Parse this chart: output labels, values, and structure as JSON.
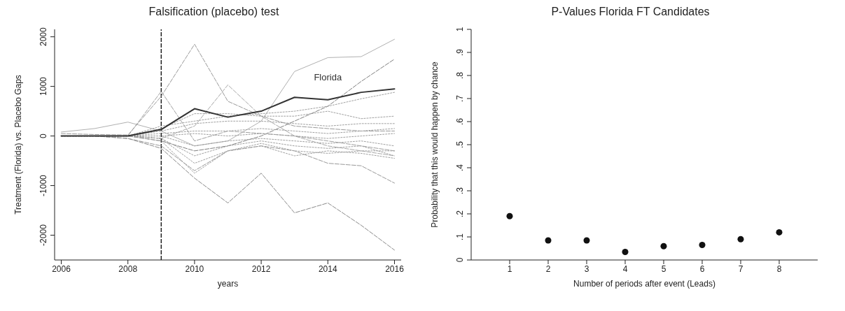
{
  "chart_data": [
    {
      "type": "line",
      "title": "Falsification (placebo) test",
      "xlabel": "years",
      "ylabel": "Treatment (Florida) vs. Placebo Gaps",
      "x": [
        2006,
        2007,
        2008,
        2009,
        2010,
        2011,
        2012,
        2013,
        2014,
        2015,
        2016
      ],
      "xlim": [
        2005.8,
        2016.2
      ],
      "xticks": [
        2006,
        2008,
        2010,
        2012,
        2014,
        2016
      ],
      "ylim": [
        -2500,
        2150
      ],
      "yticks": [
        -2000,
        -1000,
        0,
        1000,
        2000
      ],
      "grid": false,
      "legend": false,
      "marker": "none",
      "ref_lines": [
        {
          "axis": "x",
          "value": 2009,
          "color": "#222222",
          "line_style": "dashed"
        }
      ],
      "series": [
        {
          "color": "#9a9a9a",
          "line_style": "dashed",
          "values": [
            50,
            30,
            20,
            800,
            1850,
            700,
            400,
            200,
            150,
            100,
            100
          ]
        },
        {
          "color": "#b0b0b0",
          "line_style": "solid",
          "values": [
            80,
            150,
            280,
            100,
            -200,
            -100,
            300,
            1300,
            1580,
            1600,
            1950
          ]
        },
        {
          "color": "#808080",
          "line_style": "dashed",
          "values": [
            0,
            0,
            0,
            -100,
            -300,
            -200,
            0,
            300,
            600,
            1100,
            1550
          ]
        },
        {
          "color": "#a8a8a8",
          "line_style": "dashed",
          "values": [
            0,
            0,
            0,
            -50,
            200,
            1030,
            400,
            0,
            -200,
            -300,
            -400
          ]
        },
        {
          "color": "#8a8a8a",
          "line_style": "dashed",
          "values": [
            0,
            0,
            -50,
            -250,
            -850,
            -1350,
            -750,
            -1550,
            -1350,
            -1800,
            -2300
          ]
        },
        {
          "color": "#999999",
          "line_style": "dashed",
          "values": [
            0,
            0,
            -50,
            -200,
            -700,
            -300,
            -200,
            -300,
            -550,
            -600,
            -950
          ]
        },
        {
          "color": "#a0a0a0",
          "line_style": "dashed",
          "values": [
            0,
            0,
            0,
            900,
            -100,
            100,
            50,
            0,
            -100,
            -200,
            -300
          ]
        },
        {
          "color": "#a0a0a0",
          "line_style": "dotted",
          "values": [
            0,
            0,
            0,
            200,
            300,
            400,
            450,
            500,
            600,
            750,
            880
          ]
        },
        {
          "color": "#a0a0a0",
          "line_style": "dotted",
          "values": [
            0,
            0,
            0,
            150,
            450,
            450,
            400,
            400,
            500,
            350,
            400
          ]
        },
        {
          "color": "#a0a0a0",
          "line_style": "dotted",
          "values": [
            0,
            0,
            0,
            100,
            250,
            300,
            300,
            250,
            200,
            250,
            250
          ]
        },
        {
          "color": "#a0a0a0",
          "line_style": "dotted",
          "values": [
            0,
            0,
            0,
            50,
            100,
            100,
            150,
            100,
            50,
            100,
            150
          ]
        },
        {
          "color": "#a0a0a0",
          "line_style": "dotted",
          "values": [
            0,
            0,
            0,
            -50,
            -550,
            -300,
            -150,
            -300,
            -350,
            -300,
            -300
          ]
        },
        {
          "color": "#a0a0a0",
          "line_style": "dotted",
          "values": [
            0,
            0,
            0,
            -100,
            -750,
            -300,
            -200,
            -400,
            -300,
            -350,
            -450
          ]
        },
        {
          "color": "#a0a0a0",
          "line_style": "dotted",
          "values": [
            0,
            0,
            0,
            -50,
            -400,
            -200,
            -100,
            -200,
            -250,
            -200,
            -400
          ]
        },
        {
          "color": "#a0a0a0",
          "line_style": "dotted",
          "values": [
            0,
            0,
            0,
            0,
            -200,
            -100,
            -50,
            -100,
            -150,
            -100,
            -200
          ]
        },
        {
          "color": "#a0a0a0",
          "line_style": "dotted",
          "values": [
            0,
            0,
            0,
            0,
            50,
            0,
            50,
            0,
            -50,
            0,
            50
          ]
        },
        {
          "name": "Florida",
          "color": "#333333",
          "line_style": "solid",
          "values": [
            0,
            0,
            0,
            130,
            550,
            380,
            500,
            780,
            730,
            880,
            950
          ]
        }
      ]
    },
    {
      "type": "scatter",
      "title": "P-Values Florida FT Candidates",
      "xlabel": "Number of periods after event (Leads)",
      "ylabel": "Probability that this would happen by chance",
      "x": [
        1,
        2,
        3,
        4,
        5,
        6,
        7,
        8
      ],
      "values": [
        0.19,
        0.085,
        0.085,
        0.035,
        0.06,
        0.065,
        0.09,
        0.12
      ],
      "color": "#111111",
      "xlim": [
        0,
        9
      ],
      "xticks": [
        1,
        2,
        3,
        4,
        5,
        6,
        7,
        8
      ],
      "ylim": [
        0,
        1
      ],
      "yticks": [
        0,
        {
          "value": 0.1,
          "label": ".1"
        },
        {
          "value": 0.2,
          "label": ".2"
        },
        {
          "value": 0.3,
          "label": ".3"
        },
        {
          "value": 0.4,
          "label": ".4"
        },
        {
          "value": 0.5,
          "label": ".5"
        },
        {
          "value": 0.6,
          "label": ".6"
        },
        {
          "value": 0.7,
          "label": ".7"
        },
        {
          "value": 0.8,
          "label": ".8"
        },
        {
          "value": 0.9,
          "label": ".9"
        },
        1
      ],
      "grid": false,
      "legend": false,
      "marker": "circle"
    }
  ]
}
